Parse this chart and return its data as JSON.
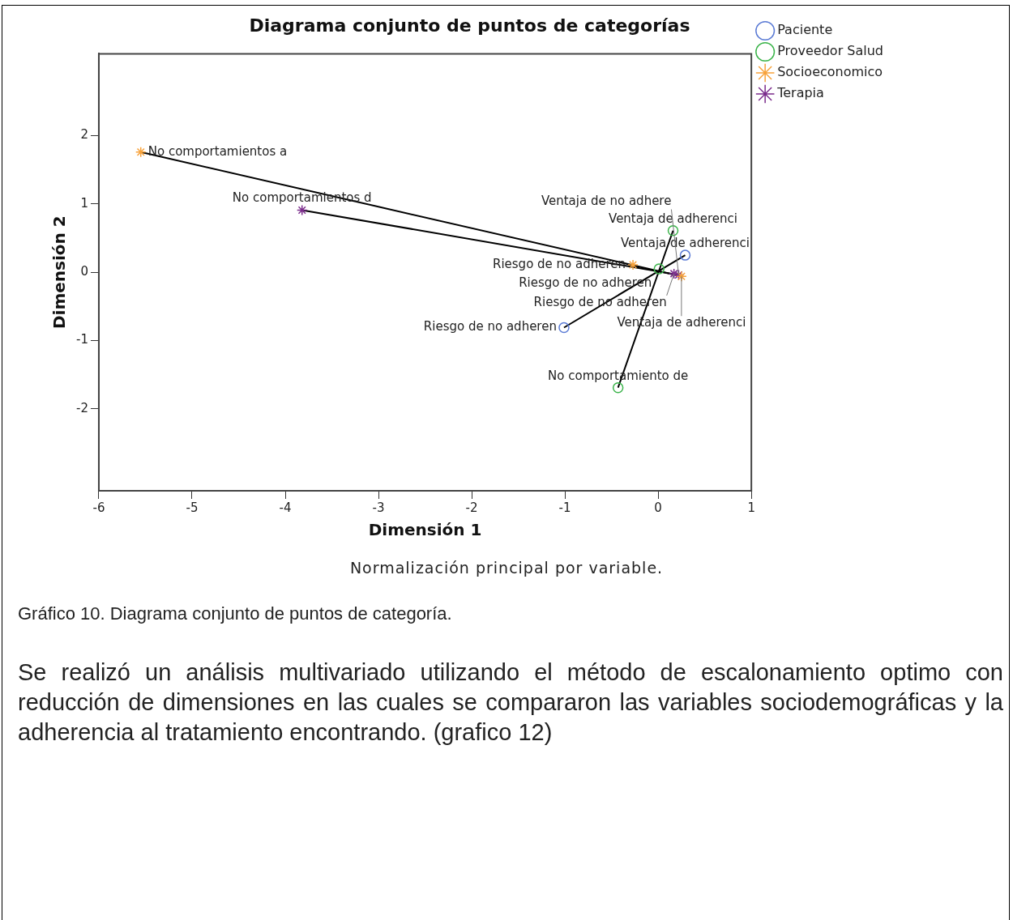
{
  "chart_data": {
    "type": "scatter",
    "title": "Diagrama conjunto de puntos de categorías",
    "xlabel": "Dimensión 1",
    "ylabel": "Dimensión 2",
    "xlim": [
      -6,
      1
    ],
    "xticks": [
      -6,
      -5,
      -4,
      -3,
      -2,
      -1,
      0,
      1
    ],
    "ylim": [
      -3.2,
      3.2
    ],
    "yticks": [
      -2,
      -1,
      0,
      1,
      2
    ],
    "grid": false,
    "legend": "top right",
    "series": [
      {
        "name": "Paciente",
        "color": "#5b7bd5",
        "marker": "circle",
        "x": [
          0.29,
          -1.01
        ],
        "values": [
          0.25,
          -0.81
        ]
      },
      {
        "name": "Proveedor Salud",
        "color": "#3cb44b",
        "marker": "circle",
        "x": [
          0.16,
          0.01,
          -0.43
        ],
        "values": [
          0.61,
          0.05,
          -1.69
        ]
      },
      {
        "name": "Socioeconomico",
        "color": "#f7a23b",
        "marker": "cross",
        "x": [
          -5.55,
          -0.27,
          0.25
        ],
        "values": [
          1.76,
          0.11,
          -0.06
        ]
      },
      {
        "name": "Terapia",
        "color": "#7b2c8c",
        "marker": "cross",
        "x": [
          -3.82,
          0.17,
          0.22
        ],
        "values": [
          0.91,
          -0.02,
          -0.04
        ]
      },
      {
        "type": "line",
        "color": "#000000",
        "marker": "none",
        "x": [
          0.29,
          -1.01
        ],
        "values": [
          0.25,
          -0.81
        ]
      },
      {
        "type": "line",
        "color": "#000000",
        "marker": "none",
        "x": [
          0.16,
          -0.43
        ],
        "values": [
          0.61,
          -1.69
        ]
      },
      {
        "type": "line",
        "color": "#000000",
        "marker": "none",
        "x": [
          -5.55,
          0.25
        ],
        "values": [
          1.76,
          -0.06
        ]
      },
      {
        "type": "line",
        "color": "#000000",
        "marker": "none",
        "x": [
          -3.82,
          0.22
        ],
        "values": [
          0.91,
          -0.04
        ]
      }
    ],
    "annotations": [
      {
        "text": "No comportamientos a",
        "x": -5.55,
        "y": 1.76
      },
      {
        "text": "No comportamientos d",
        "x": -3.82,
        "y": 0.91
      },
      {
        "text": "Ventaja de adherenci",
        "x": 0.16,
        "y": 0.61
      },
      {
        "text": "Ventaja de adherenci",
        "x": 0.29,
        "y": 0.25
      },
      {
        "text": "Riesgo de no adheren",
        "x": -0.27,
        "y": 0.11
      },
      {
        "text": "Riesgo de no adheren",
        "x": 0.01,
        "y": 0.05
      },
      {
        "text": "Riesgo de no adheren",
        "x": 0.17,
        "y": -0.02
      },
      {
        "text": "Ventaja de adherenci",
        "x": 0.25,
        "y": -0.06
      },
      {
        "text": "Ventaja de no adhere",
        "x": 0.22,
        "y": -0.04
      },
      {
        "text": "Riesgo de no adheren",
        "x": -1.01,
        "y": -0.81
      },
      {
        "text": "No comportamiento de",
        "x": -0.43,
        "y": -1.69
      },
      "Normalización principal por variable.",
      "Gráfico 10. Diagrama conjunto de puntos de categoría.",
      "Se realizó un análisis multivariado utilizando el método de escalonamiento optimo con reducción de dimensiones en las cuales se compararon las variables sociodemográficas y la adherencia al tratamiento encontrando. (grafico 12)"
    ]
  }
}
